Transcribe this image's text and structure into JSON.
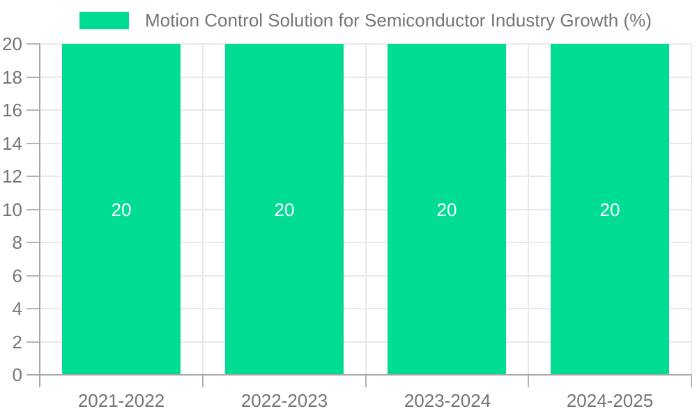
{
  "chart_data": {
    "type": "bar",
    "title": "Motion Control Solution for Semiconductor Industry Growth (%)",
    "legend": {
      "label": "Motion Control Solution for Semiconductor Industry Growth (%)",
      "position": "top"
    },
    "categories": [
      "2021-2022",
      "2022-2023",
      "2023-2024",
      "2024-2025"
    ],
    "series": [
      {
        "name": "Motion Control Solution for Semiconductor Industry Growth (%)",
        "values": [
          20,
          20,
          20,
          20
        ],
        "value_labels": [
          "20",
          "20",
          "20",
          "20"
        ]
      }
    ],
    "xlabel": "",
    "ylabel": "",
    "ylim": [
      0,
      20
    ],
    "ytick_step": 2,
    "yticks": [
      0,
      2,
      4,
      6,
      8,
      10,
      12,
      14,
      16,
      18,
      20
    ],
    "grid": true,
    "colors": {
      "bar": "#00DC93",
      "grid": "#E9E9E9",
      "axis": "#A6A6A6",
      "tick_mark": "#B3B3B3",
      "tick_text": "#757575",
      "legend_text": "#757575",
      "bar_value_text": "#FFFFFF",
      "background": "#FFFFFF"
    }
  }
}
